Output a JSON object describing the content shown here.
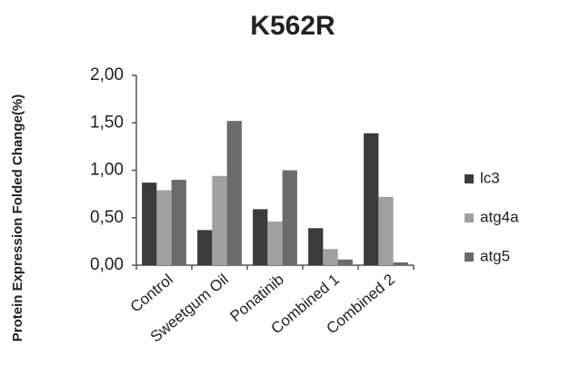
{
  "chart_data": {
    "type": "grouped-bar",
    "title": "K562R",
    "y_label": "Protein Expression Folded Change(%)",
    "categories": [
      "Control",
      "Sweetgum Oil",
      "Ponatinib",
      "Combined 1",
      "Combined 2"
    ],
    "series": [
      {
        "name": "lc3",
        "color": "#3b3b3b",
        "values": [
          0.87,
          0.37,
          0.59,
          0.39,
          1.39
        ]
      },
      {
        "name": "atg4a",
        "color": "#a0a0a0",
        "values": [
          0.79,
          0.94,
          0.46,
          0.17,
          0.72
        ]
      },
      {
        "name": "atg5",
        "color": "#6b6b6b",
        "values": [
          0.9,
          1.52,
          1.0,
          0.06,
          0.03
        ]
      }
    ],
    "ylim": [
      0,
      2
    ],
    "yticks": [
      {
        "value": 0,
        "label": "0,00"
      },
      {
        "value": 0.5,
        "label": "0,50"
      },
      {
        "value": 1,
        "label": "1,00"
      },
      {
        "value": 1.5,
        "label": "1,50"
      },
      {
        "value": 2,
        "label": "2,00"
      }
    ],
    "grid": false,
    "legend": "right"
  }
}
